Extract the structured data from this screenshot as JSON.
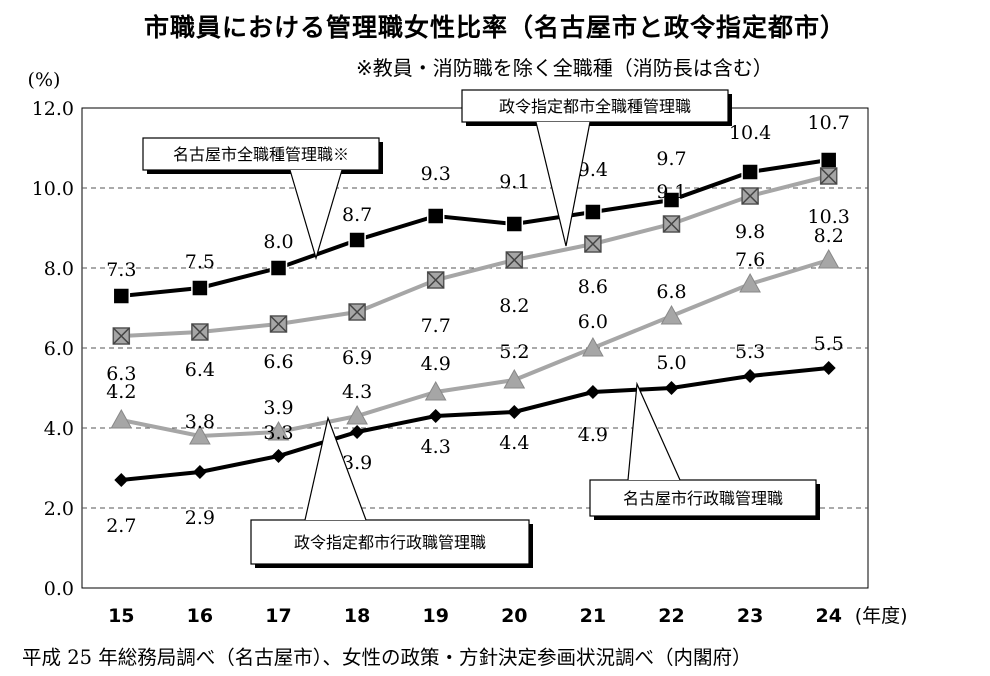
{
  "title": "市職員における管理職女性比率（名古屋市と政令指定都市）",
  "subtitle": "※教員・消防職を除く全職種（消防長は含む）",
  "source": "平成 25 年総務局調べ（名古屋市）、女性の政策・方針決定参画状況調べ（内閣府）",
  "chart_data": {
    "type": "line",
    "ylabel": "(%)",
    "xlabel": "(年度)",
    "ylim": [
      0,
      12
    ],
    "yticks": [
      "0.0",
      "2.0",
      "4.0",
      "6.0",
      "8.0",
      "10.0",
      "12.0"
    ],
    "categories": [
      "15",
      "16",
      "17",
      "18",
      "19",
      "20",
      "21",
      "22",
      "23",
      "24"
    ],
    "grid": true,
    "series": [
      {
        "name": "名古屋市全職種管理職※",
        "values": [
          7.3,
          7.5,
          8.0,
          8.7,
          9.3,
          9.1,
          9.4,
          9.7,
          10.4,
          10.7
        ],
        "labels": [
          "7.3",
          "7.5",
          "8.0",
          "8.7",
          "9.3",
          "9.1",
          "9.4",
          "9.7",
          "10.4",
          "10.7"
        ],
        "color": "#000000",
        "marker": "filled-square"
      },
      {
        "name": "政令指定都市全職種管理職",
        "values": [
          6.3,
          6.4,
          6.6,
          6.9,
          7.7,
          8.2,
          8.6,
          9.1,
          9.8,
          10.3
        ],
        "labels": [
          "6.3",
          "6.4",
          "6.6",
          "6.9",
          "7.7",
          "8.2",
          "8.6",
          "9.1",
          "9.8",
          "10.3"
        ],
        "color": "#a6a6a6",
        "marker": "crossed-square"
      },
      {
        "name": "",
        "values": [
          4.2,
          3.8,
          3.9,
          4.3,
          4.9,
          5.2,
          6.0,
          6.8,
          7.6,
          8.2
        ],
        "labels": [
          "4.2",
          "3.8",
          "3.9",
          "4.3",
          "4.9",
          "5.2",
          "6.0",
          "6.8",
          "7.6",
          "8.2"
        ],
        "color": "#a6a6a6",
        "marker": "triangle"
      },
      {
        "name": "",
        "values": [
          2.7,
          2.9,
          3.3,
          3.9,
          4.3,
          4.4,
          4.9,
          5.0,
          5.3,
          5.5
        ],
        "labels": [
          "2.7",
          "2.9",
          "3.3",
          "3.9",
          "4.3",
          "4.4",
          "4.9",
          "5.0",
          "5.3",
          "5.5"
        ],
        "color": "#000000",
        "marker": "diamond"
      }
    ],
    "callouts": [
      "名古屋市全職種管理職※",
      "政令指定都市全職種管理職",
      "名古屋市行政職管理職",
      "政令指定都市行政職管理職"
    ]
  }
}
